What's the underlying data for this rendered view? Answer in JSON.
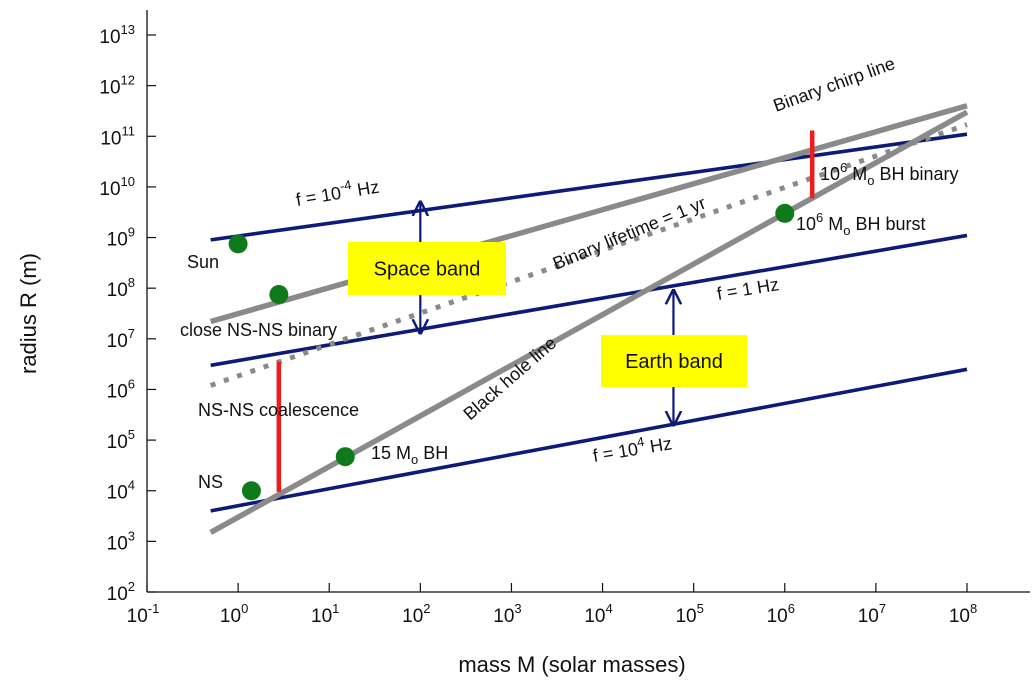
{
  "chart_data": {
    "type": "line",
    "title": "",
    "xlabel": "mass M (solar masses)",
    "ylabel": "radius R (m)",
    "x_scale": "log",
    "y_scale": "log",
    "xlim": [
      0.1,
      100000000
    ],
    "ylim": [
      100,
      10000000000000
    ],
    "grid": false,
    "x_ticks": [
      {
        "base": "10",
        "exp": "-1"
      },
      {
        "base": "10",
        "exp": "0"
      },
      {
        "base": "10",
        "exp": "1"
      },
      {
        "base": "10",
        "exp": "2"
      },
      {
        "base": "10",
        "exp": "3"
      },
      {
        "base": "10",
        "exp": "4"
      },
      {
        "base": "10",
        "exp": "5"
      },
      {
        "base": "10",
        "exp": "6"
      },
      {
        "base": "10",
        "exp": "7"
      },
      {
        "base": "10",
        "exp": "8"
      }
    ],
    "y_ticks": [
      {
        "base": "10",
        "exp": "2"
      },
      {
        "base": "10",
        "exp": "3"
      },
      {
        "base": "10",
        "exp": "4"
      },
      {
        "base": "10",
        "exp": "5"
      },
      {
        "base": "10",
        "exp": "6"
      },
      {
        "base": "10",
        "exp": "7"
      },
      {
        "base": "10",
        "exp": "8"
      },
      {
        "base": "10",
        "exp": "9"
      },
      {
        "base": "10",
        "exp": "10"
      },
      {
        "base": "10",
        "exp": "11"
      },
      {
        "base": "10",
        "exp": "12"
      },
      {
        "base": "10",
        "exp": "13"
      }
    ],
    "series": [
      {
        "id": "f-1e-4",
        "color": "#0d1a7a",
        "style": "solid",
        "x": [
          0.5,
          100000000
        ],
        "y": [
          900000000,
          110000000000
        ]
      },
      {
        "id": "f-1",
        "color": "#0d1a7a",
        "style": "solid",
        "x": [
          0.5,
          100000000
        ],
        "y": [
          3000000,
          1100000000
        ]
      },
      {
        "id": "f-1e4",
        "color": "#0d1a7a",
        "style": "solid",
        "x": [
          0.5,
          100000000
        ],
        "y": [
          4000,
          2500000
        ]
      },
      {
        "id": "black-hole-line",
        "color": "#8a8a8a",
        "style": "solid",
        "x": [
          0.5,
          100000000
        ],
        "y": [
          1500,
          300000000000
        ]
      },
      {
        "id": "binary-chirp-line",
        "color": "#8a8a8a",
        "style": "solid",
        "x": [
          0.5,
          100000000
        ],
        "y": [
          22000000,
          400000000000
        ]
      },
      {
        "id": "binary-lifetime",
        "color": "#8a8a8a",
        "style": "dotted",
        "x": [
          0.5,
          100000000
        ],
        "y": [
          1200000,
          170000000000
        ]
      }
    ],
    "points": [
      {
        "id": "sun",
        "x": 1,
        "y": 750000000
      },
      {
        "id": "close-ns-ns",
        "x": 2.8,
        "y": 75000000
      },
      {
        "id": "ns",
        "x": 1.4,
        "y": 10000
      },
      {
        "id": "bh-15",
        "x": 15,
        "y": 47000
      },
      {
        "id": "bh-burst",
        "x": 1000000,
        "y": 3000000000
      }
    ],
    "red_segments": [
      {
        "id": "ns-ns-coalescence",
        "x": 2.8,
        "y": [
          9500,
          3500000
        ]
      },
      {
        "id": "bh-binary",
        "x": 2000000,
        "y": [
          6000000000,
          130000000000
        ]
      }
    ],
    "band_arrows": [
      {
        "id": "space-band-arrow",
        "x": 100,
        "y": [
          5000000000,
          13000000
        ]
      },
      {
        "id": "earth-band-arrow",
        "x": 60000,
        "y": [
          90000000,
          200000
        ]
      }
    ],
    "annotations": {
      "f_upper": {
        "pre": "f = 10",
        "sup": "-4",
        "post": " Hz"
      },
      "f_mid": {
        "pre": "f = 1 Hz",
        "sup": "",
        "post": ""
      },
      "f_lower": {
        "pre": "f = 10",
        "sup": "4",
        "post": " Hz"
      },
      "binary_chirp": "Binary chirp line",
      "binary_lifetime": "Binary lifetime = 1 yr",
      "black_hole": "Black hole line",
      "sun": "Sun",
      "close_ns": "close NS-NS binary",
      "ns_ns_coalescence": "NS-NS coalescence",
      "ns": "NS",
      "bh15": {
        "pre": "15 M",
        "sub": "o",
        "post": " BH"
      },
      "bh_binary": {
        "pre": "10",
        "sup": "6",
        "mid": " M",
        "sub": "o",
        "post": " BH binary"
      },
      "bh_burst": {
        "pre": "10",
        "sup": "6",
        "mid": " M",
        "sub": "o",
        "post": " BH burst"
      },
      "space_band": "Space band",
      "earth_band": "Earth band"
    },
    "colors": {
      "frequency_line": "#0d1a7a",
      "gray_line": "#8a8a8a",
      "point": "#0f7a1c",
      "red": "#ee1c1c",
      "band_box": "#ffff00",
      "arrow": "#0d1a7a"
    }
  }
}
